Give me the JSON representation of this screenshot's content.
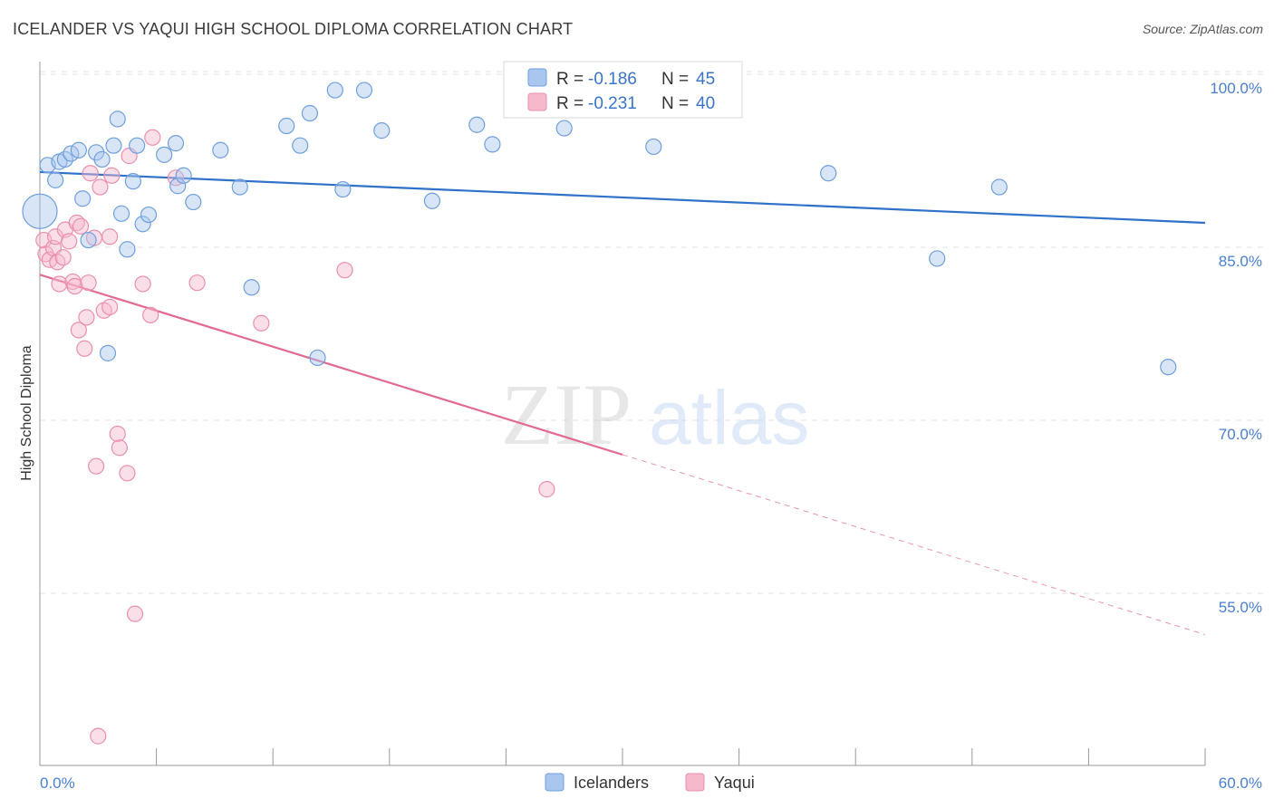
{
  "header": {
    "title": "ICELANDER VS YAQUI HIGH SCHOOL DIPLOMA CORRELATION CHART",
    "source": "Source: ZipAtlas.com"
  },
  "watermark": {
    "zip": "ZIP",
    "atlas": "atlas"
  },
  "colors": {
    "blue_fill": "#a9c6ee",
    "blue_stroke": "#6f9fde",
    "blue_line": "#2f72c9",
    "pink_fill": "#f6b8cb",
    "pink_stroke": "#ea8fae",
    "pink_line": "#e26a93",
    "tick_text": "#4a7fd0",
    "grid": "#e3e3e3"
  },
  "chart_data": {
    "type": "scatter",
    "title": "ICELANDER VS YAQUI HIGH SCHOOL DIPLOMA CORRELATION CHART",
    "xlabel": "",
    "ylabel": "High School Diploma",
    "xlim": [
      0,
      60
    ],
    "ylim": [
      40,
      103
    ],
    "x_tick_labels": {
      "left": "0.0%",
      "right": "60.0%"
    },
    "y_ticks": [
      {
        "value": 100,
        "label": "100.0%"
      },
      {
        "value": 85,
        "label": "85.0%"
      },
      {
        "value": 70,
        "label": "70.0%"
      },
      {
        "value": 55,
        "label": "55.0%"
      }
    ],
    "legend": {
      "r_label": "R =",
      "n_label": "N =",
      "entries": [
        {
          "series": "Icelanders",
          "r": "-0.186",
          "n": "45"
        },
        {
          "series": "Yaqui",
          "r": "-0.231",
          "n": "40"
        }
      ]
    },
    "series": [
      {
        "name": "Icelanders",
        "color": "blue",
        "trend": {
          "x0": 0,
          "y0": 92.7,
          "x1": 60,
          "y1": 88.3,
          "dashed_from": null
        },
        "points": [
          [
            0.0,
            89.3
          ],
          [
            0.4,
            93.3
          ],
          [
            0.8,
            92.0
          ],
          [
            1.0,
            93.6
          ],
          [
            1.3,
            93.8
          ],
          [
            1.6,
            94.3
          ],
          [
            2.0,
            94.6
          ],
          [
            2.2,
            90.4
          ],
          [
            2.5,
            86.8
          ],
          [
            2.9,
            94.4
          ],
          [
            3.2,
            93.8
          ],
          [
            3.5,
            77.0
          ],
          [
            3.8,
            95.0
          ],
          [
            4.0,
            97.3
          ],
          [
            4.2,
            89.1
          ],
          [
            4.5,
            86.0
          ],
          [
            4.8,
            91.9
          ],
          [
            5.0,
            95.0
          ],
          [
            5.3,
            88.2
          ],
          [
            5.6,
            89.0
          ],
          [
            6.4,
            94.2
          ],
          [
            7.0,
            95.2
          ],
          [
            7.1,
            91.5
          ],
          [
            7.4,
            92.4
          ],
          [
            7.9,
            90.1
          ],
          [
            9.3,
            94.6
          ],
          [
            10.3,
            91.4
          ],
          [
            10.9,
            82.7
          ],
          [
            12.7,
            96.7
          ],
          [
            13.4,
            95.0
          ],
          [
            13.9,
            97.8
          ],
          [
            14.3,
            76.6
          ],
          [
            15.2,
            99.8
          ],
          [
            15.6,
            91.2
          ],
          [
            16.7,
            99.8
          ],
          [
            17.6,
            96.3
          ],
          [
            20.2,
            90.2
          ],
          [
            22.5,
            96.8
          ],
          [
            23.3,
            95.1
          ],
          [
            27.0,
            96.5
          ],
          [
            31.6,
            94.9
          ],
          [
            40.6,
            92.6
          ],
          [
            46.2,
            85.2
          ],
          [
            49.4,
            91.4
          ],
          [
            58.1,
            75.8
          ]
        ]
      },
      {
        "name": "Yaqui",
        "color": "pink",
        "trend": {
          "x0": 0,
          "y0": 83.8,
          "x1": 60,
          "y1": 52.6,
          "dashed_from": 30
        },
        "points": [
          [
            0.2,
            86.8
          ],
          [
            0.3,
            85.6
          ],
          [
            0.5,
            85.1
          ],
          [
            0.7,
            86.1
          ],
          [
            0.8,
            87.1
          ],
          [
            0.9,
            84.9
          ],
          [
            1.0,
            83.0
          ],
          [
            1.2,
            85.3
          ],
          [
            1.3,
            87.7
          ],
          [
            1.5,
            86.7
          ],
          [
            1.7,
            83.2
          ],
          [
            1.8,
            82.8
          ],
          [
            1.9,
            88.3
          ],
          [
            2.0,
            79.0
          ],
          [
            2.1,
            88.0
          ],
          [
            2.3,
            77.4
          ],
          [
            2.4,
            80.1
          ],
          [
            2.5,
            83.1
          ],
          [
            2.6,
            92.6
          ],
          [
            2.8,
            87.0
          ],
          [
            2.9,
            67.2
          ],
          [
            3.0,
            43.8
          ],
          [
            3.1,
            91.4
          ],
          [
            3.3,
            80.7
          ],
          [
            3.6,
            87.1
          ],
          [
            3.7,
            92.4
          ],
          [
            4.0,
            70.0
          ],
          [
            4.1,
            68.8
          ],
          [
            4.5,
            66.6
          ],
          [
            4.6,
            94.1
          ],
          [
            4.9,
            54.4
          ],
          [
            5.3,
            83.0
          ],
          [
            5.7,
            80.3
          ],
          [
            5.8,
            95.7
          ],
          [
            7.0,
            92.2
          ],
          [
            8.1,
            83.1
          ],
          [
            11.4,
            79.6
          ],
          [
            15.7,
            84.2
          ],
          [
            26.1,
            65.2
          ],
          [
            3.6,
            81.0
          ]
        ]
      }
    ]
  },
  "bottom_legend": [
    {
      "label": "Icelanders",
      "color": "blue"
    },
    {
      "label": "Yaqui",
      "color": "pink"
    }
  ]
}
